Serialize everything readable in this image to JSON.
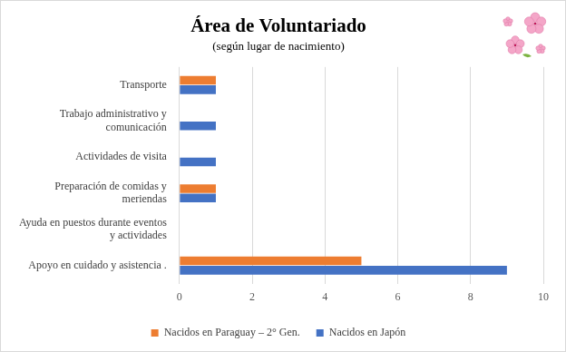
{
  "chart_data": {
    "type": "bar",
    "orientation": "horizontal",
    "title": "Área de Voluntariado",
    "subtitle": "(según lugar de nacimiento)",
    "categories": [
      "Transporte",
      "Trabajo administrativo y comunicación",
      "Actividades de visita",
      "Preparación de comidas y meriendas",
      "Ayuda en puestos durante eventos y actividades",
      "Apoyo en cuidado y asistencia ."
    ],
    "series": [
      {
        "name": "Nacidos en Paraguay – 2° Gen.",
        "color": "#ed7d31",
        "values": [
          1,
          0,
          0,
          1,
          0,
          5
        ]
      },
      {
        "name": "Nacidos en Japón",
        "color": "#4472c4",
        "values": [
          1,
          1,
          1,
          1,
          0,
          9
        ]
      }
    ],
    "xlim": [
      0,
      10
    ],
    "xticks": [
      0,
      2,
      4,
      6,
      8,
      10
    ],
    "grid": true,
    "legend": "bottom"
  }
}
